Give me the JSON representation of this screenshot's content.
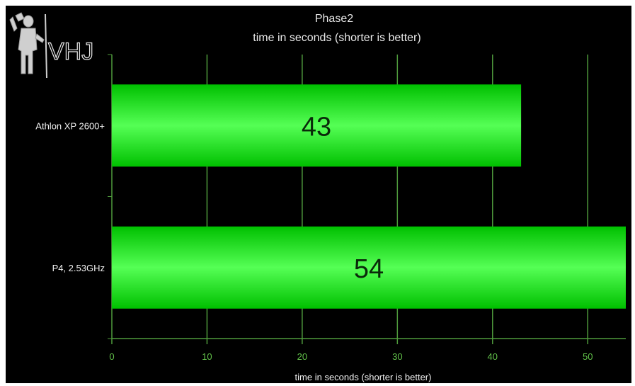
{
  "logo_text": "VHJ",
  "colors": {
    "background": "#000000",
    "grid": "#4f9a3c",
    "bar_edge": "#00c000",
    "bar_center": "#55ff55",
    "tick_label": "#62c24a",
    "category_label": "#f0f0f0",
    "value_label": "#0a2a0a"
  },
  "chart_data": {
    "type": "bar",
    "orientation": "horizontal",
    "title": "Phase2",
    "subtitle": "time in seconds (shorter is better)",
    "xlabel": "time in seconds (shorter is better)",
    "ylabel": "",
    "categories": [
      "Athlon XP 2600+",
      "P4, 2.53GHz"
    ],
    "values": [
      43,
      54
    ],
    "data_labels": [
      "43",
      "54"
    ],
    "xlim": [
      0,
      54
    ],
    "xticks": [
      0,
      10,
      20,
      30,
      40,
      50
    ],
    "xtick_labels": [
      "0",
      "10",
      "20",
      "30",
      "40",
      "50"
    ],
    "grid": true,
    "legend": "none"
  }
}
